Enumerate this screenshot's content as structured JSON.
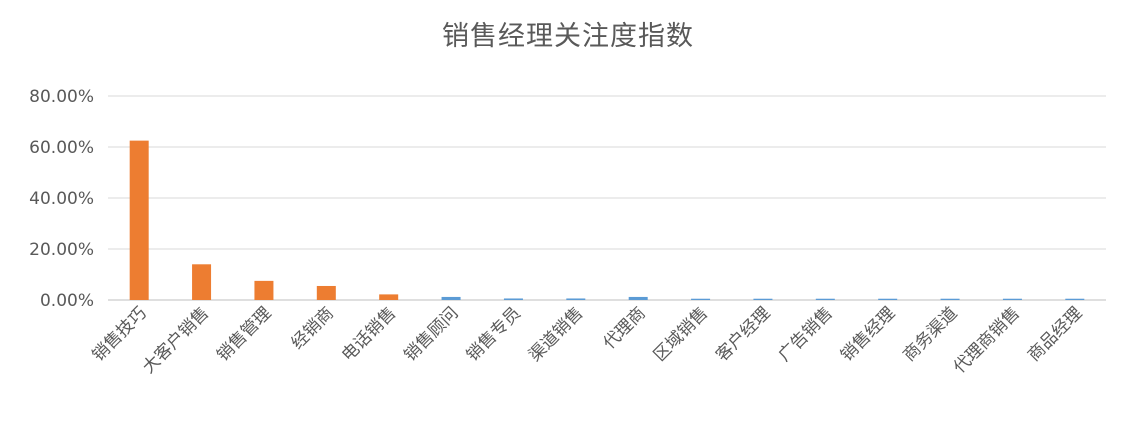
{
  "chart_data": {
    "type": "bar",
    "title": "销售经理关注度指数",
    "xlabel": "",
    "ylabel": "",
    "ylim": [
      0,
      0.8
    ],
    "yticks": [
      "0.00%",
      "20.00%",
      "40.00%",
      "60.00%",
      "80.00%"
    ],
    "ytick_values": [
      0,
      0.2,
      0.4,
      0.6,
      0.8
    ],
    "grid": true,
    "legend": "none",
    "categories": [
      "销售技巧",
      "大客户销售",
      "销售管理",
      "经销商",
      "电话销售",
      "销售顾问",
      "销售专员",
      "渠道销售",
      "代理商",
      "区域销售",
      "客户经理",
      "广告销售",
      "销售经理",
      "商务渠道",
      "代理商销售",
      "商品经理"
    ],
    "values": [
      0.625,
      0.14,
      0.075,
      0.055,
      0.022,
      0.012,
      0.006,
      0.006,
      0.012,
      0.005,
      0.005,
      0.005,
      0.005,
      0.005,
      0.005,
      0.005
    ],
    "bar_colors": [
      "#ed7d31",
      "#ed7d31",
      "#ed7d31",
      "#ed7d31",
      "#ed7d31",
      "#5b9bd5",
      "#5b9bd5",
      "#5b9bd5",
      "#5b9bd5",
      "#5b9bd5",
      "#5b9bd5",
      "#5b9bd5",
      "#5b9bd5",
      "#5b9bd5",
      "#5b9bd5",
      "#5b9bd5"
    ]
  }
}
